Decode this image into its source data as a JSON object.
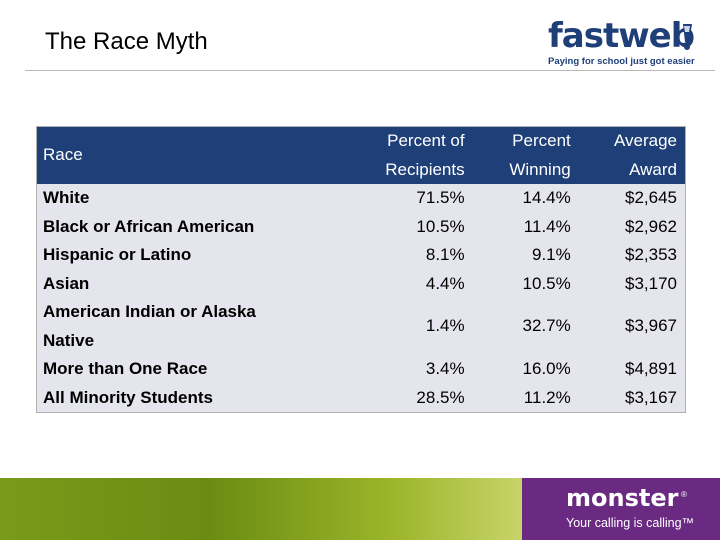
{
  "slide": {
    "title": "The Race Myth"
  },
  "logos": {
    "fastweb": {
      "word_a": "fast",
      "word_b": "web",
      "tagline": "Paying for school just got easier"
    },
    "monster": {
      "word": "monster",
      "tagline": "Your calling is calling™"
    }
  },
  "table": {
    "headers": {
      "race": "Race",
      "pct_recipients_l1": "Percent of",
      "pct_recipients_l2": "Recipients",
      "pct_winning_l1": "Percent",
      "pct_winning_l2": "Winning",
      "avg_award_l1": "Average",
      "avg_award_l2": "Award"
    },
    "rows": [
      {
        "race": "White",
        "pct_recipients": "71.5%",
        "pct_winning": "14.4%",
        "avg_award": "$2,645"
      },
      {
        "race": "Black or African American",
        "pct_recipients": "10.5%",
        "pct_winning": "11.4%",
        "avg_award": "$2,962"
      },
      {
        "race": "Hispanic or Latino",
        "pct_recipients": "8.1%",
        "pct_winning": "9.1%",
        "avg_award": "$2,353"
      },
      {
        "race": "Asian",
        "pct_recipients": "4.4%",
        "pct_winning": "10.5%",
        "avg_award": "$3,170"
      },
      {
        "race_l1": "American Indian or Alaska",
        "race_l2": "Native",
        "pct_recipients": "1.4%",
        "pct_winning": "32.7%",
        "avg_award": "$3,967"
      },
      {
        "race": "More than One Race",
        "pct_recipients": "3.4%",
        "pct_winning": "16.0%",
        "avg_award": "$4,891"
      },
      {
        "race": "All Minority Students",
        "pct_recipients": "28.5%",
        "pct_winning": "11.2%",
        "avg_award": "$3,167"
      }
    ]
  },
  "colors": {
    "header_bg": "#1e3f78",
    "table_body_bg": "#e5e5ee",
    "banner_green": "#6a8c12",
    "banner_purple": "#6a2a82"
  }
}
